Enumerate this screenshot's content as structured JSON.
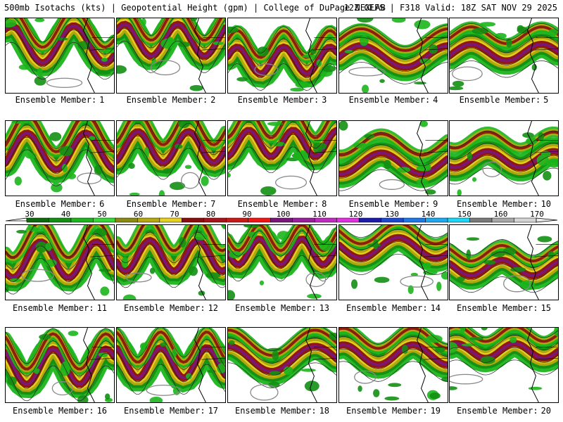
{
  "header": {
    "title_left": "500mb Isotachs (kts) | Geopotential Height (gpm) | College of DuPage NEXLAB",
    "title_right": "12Z GEFS | F318 Valid: 18Z SAT NOV 29 2025"
  },
  "member_label": "Ensemble Member:",
  "members": [
    1,
    2,
    3,
    4,
    5,
    6,
    7,
    8,
    9,
    10,
    11,
    12,
    13,
    14,
    15,
    16,
    17,
    18,
    19,
    20
  ],
  "colorbar": {
    "ticks": [
      "30",
      "40",
      "50",
      "60",
      "70",
      "80",
      "90",
      "100",
      "110",
      "120",
      "130",
      "140",
      "150",
      "160",
      "170"
    ],
    "colors": [
      "#0c6b0c",
      "#138f13",
      "#1cb51c",
      "#39d839",
      "#8a8a12",
      "#b8a80f",
      "#e6d020",
      "#8b0d0d",
      "#a8141c",
      "#c91a1a",
      "#f21515",
      "#7a167a",
      "#9a1f9a",
      "#c02ac0",
      "#e030e0",
      "#1c1ca8",
      "#1e48d0",
      "#1e78e6",
      "#1ea8f0",
      "#1ed6f5",
      "#7a7a7a",
      "#a8a8a8",
      "#d4d4d4"
    ]
  }
}
